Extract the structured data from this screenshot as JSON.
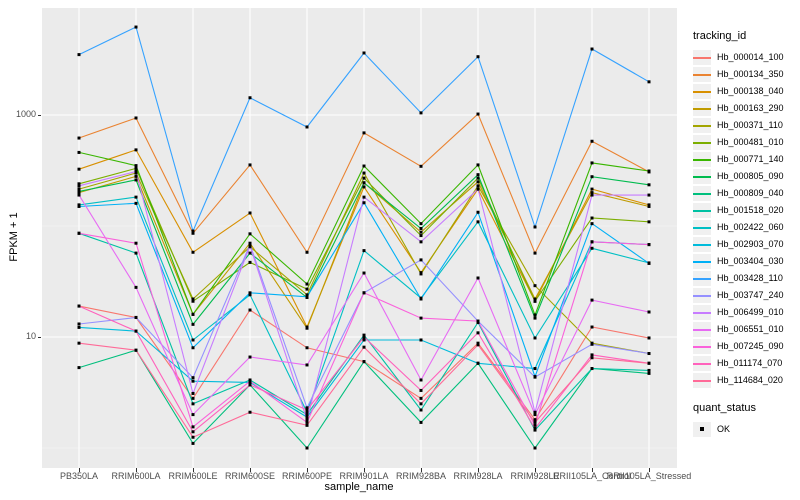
{
  "figure": {
    "background": "#FFFFFF",
    "panel_bg": "#EBEBEB",
    "grid_color": "#FFFFFF",
    "tick_text_color": "#4D4D4D",
    "point_color": "#000000"
  },
  "axes": {
    "x_title": "sample_name",
    "y_title": "FPKM + 1"
  },
  "legend": {
    "tracking_title": "tracking_id",
    "quant_title": "quant_status",
    "quant_ok_label": "OK"
  },
  "chart_data": {
    "type": "line",
    "title": "",
    "xlabel": "sample_name",
    "ylabel": "FPKM + 1",
    "y_scale": "log10",
    "ylim": [
      0.65,
      9500
    ],
    "y_ticks": [
      10,
      1000
    ],
    "y_tick_labels": [
      "10",
      "1000"
    ],
    "y_minor": [
      1,
      100
    ],
    "grid": true,
    "legend_position": "right",
    "marker": "black-point (quant_status OK)",
    "categories": [
      "PB350LA",
      "RRIM600LA",
      "RRIM600LE",
      "RRIM600SE",
      "RRIM600PE",
      "RRIM901LA",
      "RRIM928BA",
      "RRIM928LA",
      "RRIM928LE",
      "RRII105LA_Control",
      "RRII105LA_Stressed"
    ],
    "series": [
      {
        "name": "Hb_000014_100",
        "color": "#F8766D",
        "values": [
          19,
          15,
          2.8,
          17.5,
          8,
          6,
          2.8,
          8.8,
          1.8,
          12.3,
          9.8
        ]
      },
      {
        "name": "Hb_000134_350",
        "color": "#EA8331",
        "values": [
          620,
          940,
          86,
          355,
          58,
          690,
          345,
          1020,
          57,
          580,
          307
        ]
      },
      {
        "name": "Hb_000138_040",
        "color": "#D89000",
        "values": [
          325,
          485,
          58,
          131,
          12.3,
          225,
          38,
          215,
          21,
          215,
          155
        ]
      },
      {
        "name": "Hb_000163_290",
        "color": "#C09B00",
        "values": [
          200,
          280,
          16,
          70,
          12,
          245,
          88,
          250,
          22,
          200,
          150
        ]
      },
      {
        "name": "Hb_000371_110",
        "color": "#A3A500",
        "values": [
          215,
          300,
          22,
          65,
          24,
          300,
          37,
          230,
          29,
          8.8,
          7.1
        ]
      },
      {
        "name": "Hb_000481_010",
        "color": "#7CAE00",
        "values": [
          240,
          330,
          21,
          47,
          27,
          270,
          82,
          270,
          21,
          118,
          109
        ]
      },
      {
        "name": "Hb_000771_140",
        "color": "#39B600",
        "values": [
          460,
          350,
          16,
          85,
          30,
          347,
          105,
          355,
          15.8,
          370,
          313
        ]
      },
      {
        "name": "Hb_000805_090",
        "color": "#00BB4E",
        "values": [
          205,
          260,
          13,
          57,
          22.7,
          245,
          95,
          290,
          14.8,
          278,
          235
        ]
      },
      {
        "name": "Hb_000809_040",
        "color": "#00BF7D",
        "values": [
          5.3,
          7.6,
          1.1,
          3.7,
          1.0,
          6,
          1.7,
          5.8,
          1.0,
          5.2,
          4.7
        ]
      },
      {
        "name": "Hb_001518_020",
        "color": "#00C1A3",
        "values": [
          86,
          57,
          2.5,
          4.1,
          2.0,
          10.4,
          2.2,
          13.5,
          1.45,
          5.2,
          5.0
        ]
      },
      {
        "name": "Hb_002422_060",
        "color": "#00BFC4",
        "values": [
          155,
          182,
          9.4,
          24,
          2.1,
          60,
          22.4,
          109,
          9.8,
          63,
          46.5
        ]
      },
      {
        "name": "Hb_002903_070",
        "color": "#00BBDB",
        "values": [
          12.2,
          11.3,
          4.0,
          3.9,
          1.9,
          9.4,
          9.4,
          5.8,
          5.2,
          72,
          68
        ]
      },
      {
        "name": "Hb_003404_030",
        "color": "#00B0F6",
        "values": [
          150,
          160,
          8.0,
          25,
          23,
          162,
          22,
          133,
          4.4,
          105,
          46
        ]
      },
      {
        "name": "Hb_003428_110",
        "color": "#35A2FF",
        "values": [
          3500,
          6200,
          90,
          1430,
          780,
          3620,
          1045,
          3350,
          98,
          3930,
          1990
        ]
      },
      {
        "name": "Hb_003747_240",
        "color": "#9590FF",
        "values": [
          13.1,
          15,
          4.3,
          68,
          2.3,
          25,
          49.5,
          13.9,
          4.35,
          8.6,
          7.1
        ]
      },
      {
        "name": "Hb_006499_010",
        "color": "#C77CFF",
        "values": [
          230,
          310,
          3.1,
          66,
          1.8,
          182,
          72,
          215,
          2.1,
          190,
          190
        ]
      },
      {
        "name": "Hb_006551_010",
        "color": "#E76BF3",
        "values": [
          190,
          28,
          2.0,
          6.6,
          5.6,
          37.7,
          4.1,
          34,
          2.0,
          21.5,
          16.8
        ]
      },
      {
        "name": "Hb_007245_090",
        "color": "#FA62DB",
        "values": [
          86,
          70,
          1.55,
          4.0,
          1.7,
          25,
          14.8,
          13.9,
          1.6,
          72,
          68
        ]
      },
      {
        "name": "Hb_011174_070",
        "color": "#FF62BC",
        "values": [
          19,
          11.3,
          1.4,
          3.7,
          2.2,
          10,
          3.3,
          10.9,
          1.5,
          6.9,
          5.8
        ]
      },
      {
        "name": "Hb_114684_020",
        "color": "#FF6A98",
        "values": [
          8.8,
          7.6,
          1.25,
          2.1,
          1.6,
          8.1,
          2.5,
          8.5,
          1.7,
          6.5,
          5.8
        ]
      }
    ]
  }
}
